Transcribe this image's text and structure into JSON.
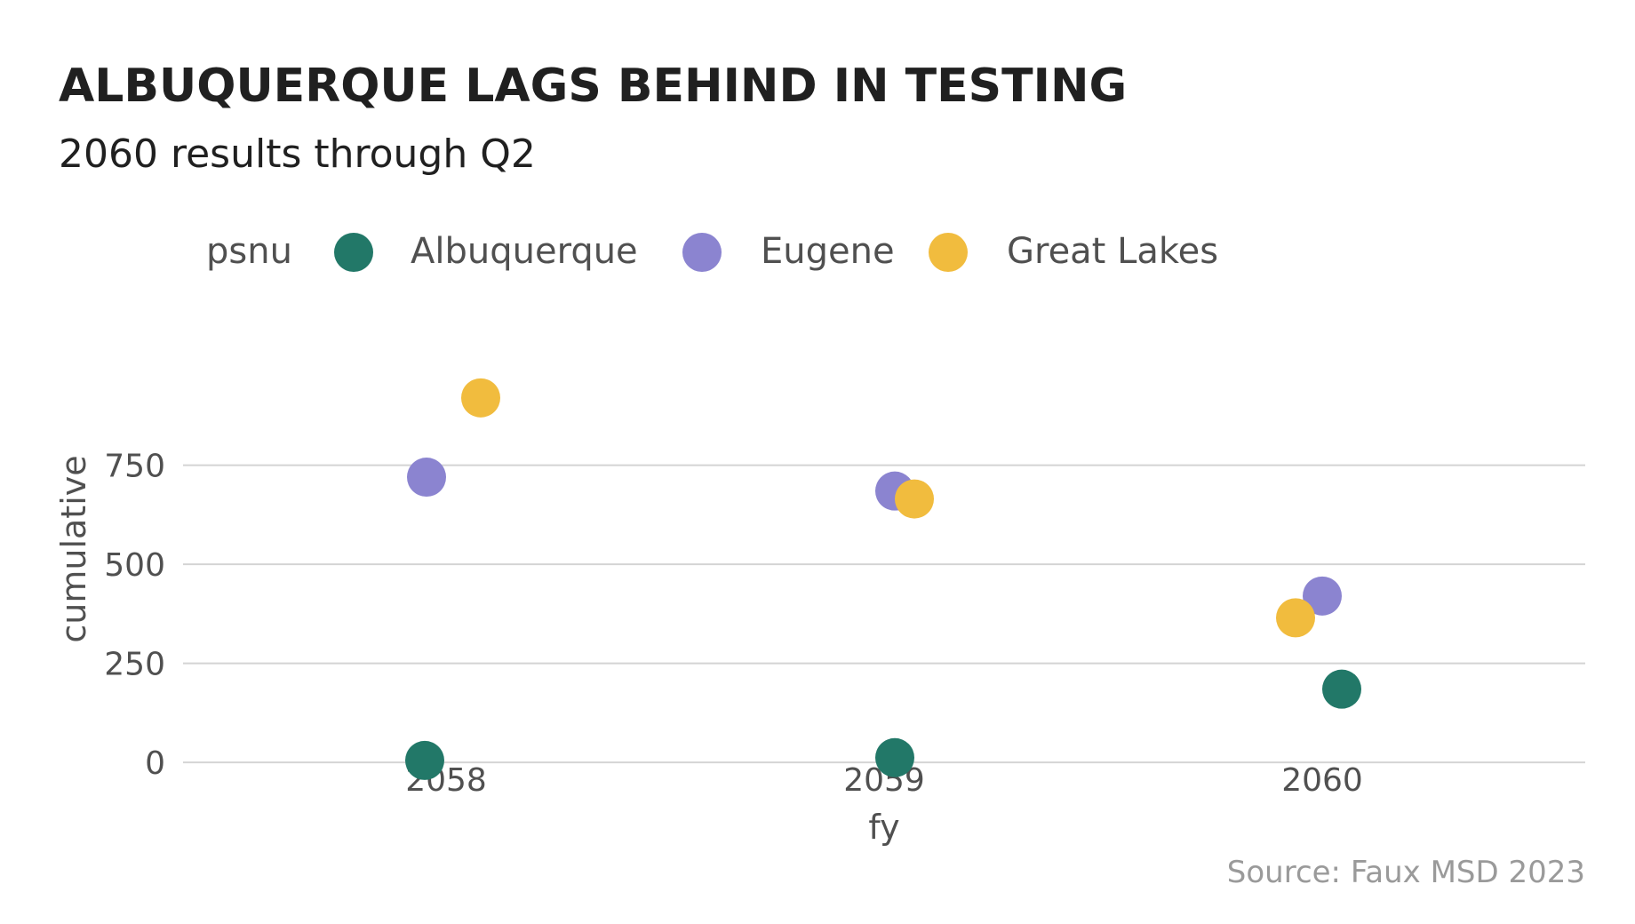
{
  "chart_data": {
    "type": "scatter",
    "title": "ALBUQUERQUE LAGS BEHIND IN TESTING",
    "subtitle": "2060 results through Q2",
    "caption": "Source: Faux MSD 2023",
    "xlabel": "fy",
    "ylabel": "cumulative",
    "categories": [
      "2058",
      "2059",
      "2060"
    ],
    "y_ticks": [
      0,
      250,
      500,
      750
    ],
    "ylim": [
      -40,
      960
    ],
    "grid": "horizontal",
    "legend": {
      "title": "psnu",
      "position": "top"
    },
    "series": [
      {
        "name": "Albuquerque",
        "color": "#227868",
        "points": [
          {
            "x": "2058",
            "y": 5
          },
          {
            "x": "2059",
            "y": 12
          },
          {
            "x": "2060",
            "y": 185
          }
        ]
      },
      {
        "name": "Eugene",
        "color": "#8b84d0",
        "points": [
          {
            "x": "2058",
            "y": 720
          },
          {
            "x": "2059",
            "y": 685
          },
          {
            "x": "2060",
            "y": 420
          }
        ]
      },
      {
        "name": "Great Lakes",
        "color": "#f1bc3e",
        "points": [
          {
            "x": "2058",
            "y": 920
          },
          {
            "x": "2059",
            "y": 665
          },
          {
            "x": "2060",
            "y": 365
          }
        ]
      }
    ]
  }
}
